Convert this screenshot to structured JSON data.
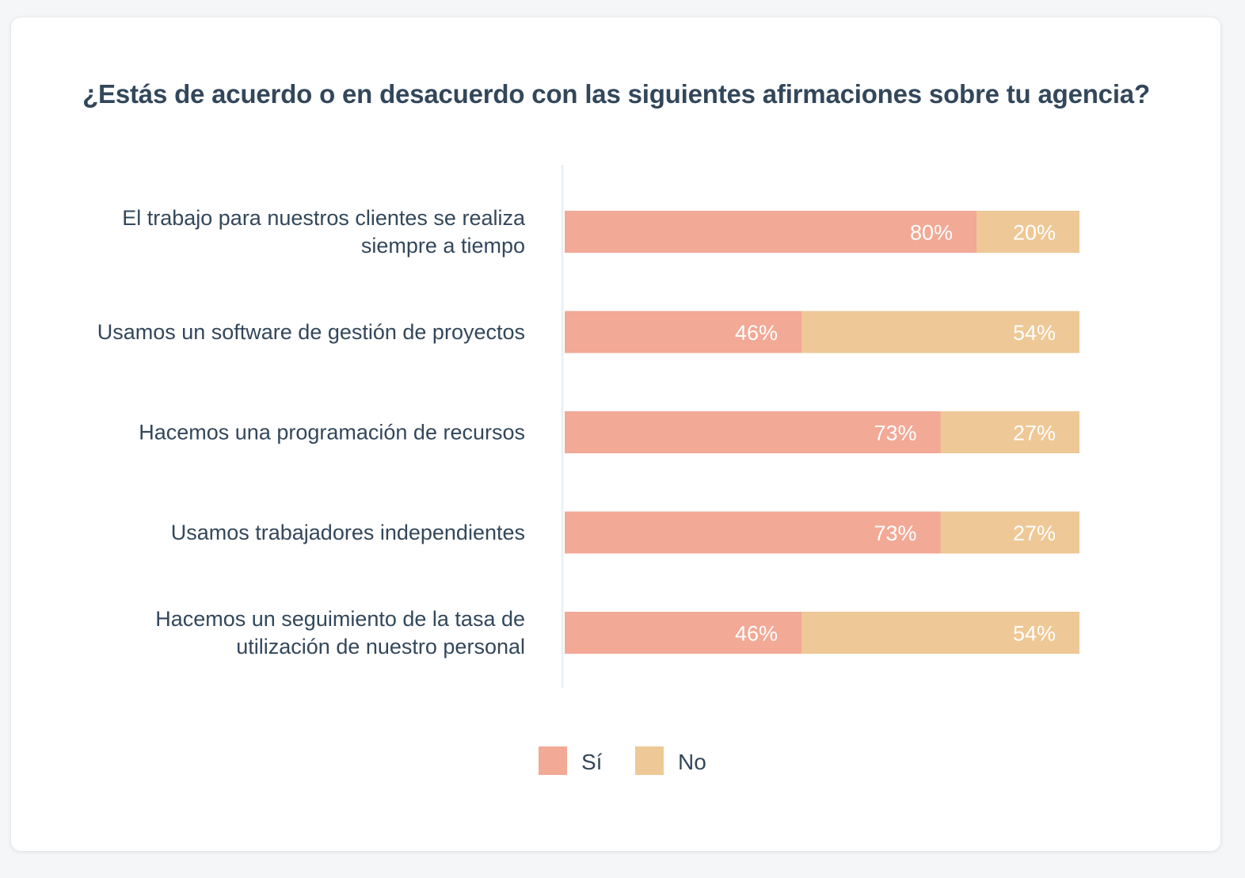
{
  "chart_data": {
    "type": "bar",
    "orientation": "horizontal",
    "stacked": true,
    "title": "¿Estás de acuerdo o en desacuerdo con las siguientes afirmaciones sobre tu agencia?",
    "xlabel": "",
    "ylabel": "",
    "xlim": [
      0,
      100
    ],
    "grid": false,
    "legend_position": "bottom-center",
    "categories": [
      [
        "El trabajo para nuestros clientes se realiza",
        "siempre a tiempo"
      ],
      [
        "Usamos un software de gestión de proyectos"
      ],
      [
        "Hacemos una programación de recursos"
      ],
      [
        "Usamos trabajadores independientes"
      ],
      [
        "Hacemos un seguimiento de la tasa de",
        "utilización de nuestro personal"
      ]
    ],
    "series": [
      {
        "name": "Sí",
        "color": "#f2a996",
        "values": [
          80,
          46,
          73,
          73,
          46
        ]
      },
      {
        "name": "No",
        "color": "#eec896",
        "values": [
          20,
          54,
          27,
          27,
          54
        ]
      }
    ],
    "value_suffix": "%"
  },
  "colors": {
    "title_text": "#33475b",
    "axis_line": "#eaf0f6",
    "value_text": "#ffffff"
  }
}
